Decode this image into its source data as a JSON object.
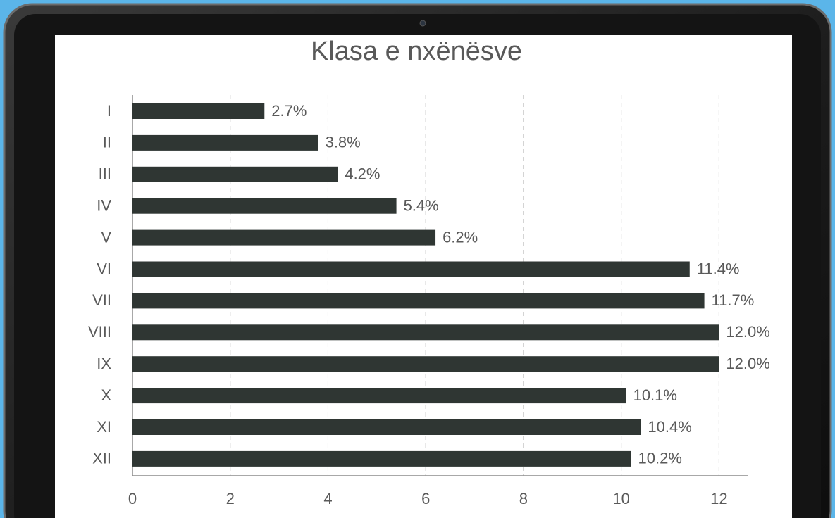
{
  "chart_data": {
    "type": "bar",
    "orientation": "horizontal",
    "title": "Klasa e nxënësve",
    "categories": [
      "I",
      "II",
      "III",
      "IV",
      "V",
      "VI",
      "VII",
      "VIII",
      "IX",
      "X",
      "XI",
      "XII"
    ],
    "values": [
      2.7,
      3.8,
      4.2,
      5.4,
      6.2,
      11.4,
      11.7,
      12.0,
      12.0,
      10.1,
      10.4,
      10.2
    ],
    "value_labels": [
      "2.7%",
      "3.8%",
      "4.2%",
      "5.4%",
      "6.2%",
      "11.4%",
      "11.7%",
      "12.0%",
      "12.0%",
      "10.1%",
      "10.4%",
      "10.2%"
    ],
    "color": "#2f3633",
    "xlim": [
      0,
      12.6
    ],
    "xticks": [
      0,
      2,
      4,
      6,
      8,
      10,
      12
    ],
    "grid": true
  }
}
